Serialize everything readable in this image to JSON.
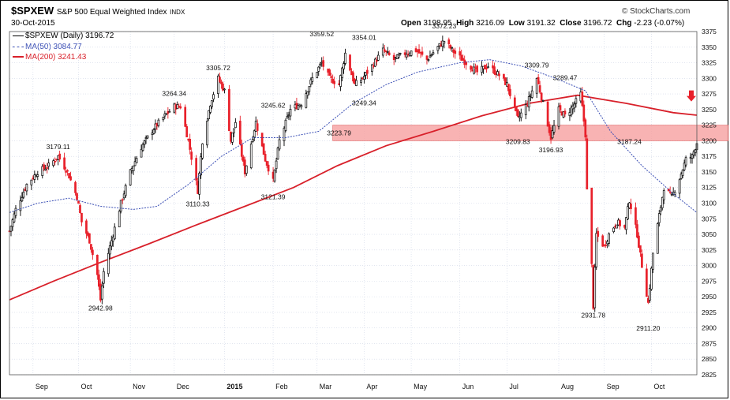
{
  "header": {
    "symbol": "$SPXEW",
    "name": "S&P 500 Equal Weighted Index",
    "exchange": "INDX",
    "date": "30-Oct-2015",
    "open_label": "Open",
    "open": "3198.95",
    "high_label": "High",
    "high": "3216.09",
    "low_label": "Low",
    "low": "3191.32",
    "close_label": "Close",
    "close": "3196.72",
    "chg_label": "Chg",
    "chg": "-2.23 (-0.07%)",
    "brand": "© StockCharts.com"
  },
  "legend": {
    "price": "$SPXEW (Daily) 3196.72",
    "ma50": "MA(50) 3084.77",
    "ma200": "MA(200) 3241.43"
  },
  "colors": {
    "up": "#000000",
    "down": "#e8202a",
    "ma50": "#3b4fb5",
    "ma200": "#d8202a",
    "band": "#f6a0a0",
    "grid": "#cfd6e6"
  },
  "chart_data": {
    "type": "candlestick",
    "yaxis_side": "right",
    "ylim": [
      2825,
      3375
    ],
    "y_ticks": [
      2825,
      2850,
      2875,
      2900,
      2925,
      2950,
      2975,
      3000,
      3025,
      3050,
      3075,
      3100,
      3125,
      3150,
      3175,
      3200,
      3225,
      3250,
      3275,
      3300,
      3325,
      3350,
      3375
    ],
    "x_range": [
      "2014-08-18",
      "2015-10-30"
    ],
    "x_ticks": [
      {
        "label": "Sep",
        "date": "2014-09-02"
      },
      {
        "label": "Oct",
        "date": "2014-10-01"
      },
      {
        "label": "Nov",
        "date": "2014-11-03"
      },
      {
        "label": "Dec",
        "date": "2014-12-01"
      },
      {
        "label": "2015",
        "date": "2015-01-02"
      },
      {
        "label": "Feb",
        "date": "2015-02-02"
      },
      {
        "label": "Mar",
        "date": "2015-03-02"
      },
      {
        "label": "Apr",
        "date": "2015-04-01"
      },
      {
        "label": "May",
        "date": "2015-05-01"
      },
      {
        "label": "Jun",
        "date": "2015-06-01"
      },
      {
        "label": "Jul",
        "date": "2015-07-01"
      },
      {
        "label": "Aug",
        "date": "2015-08-03"
      },
      {
        "label": "Sep",
        "date": "2015-09-01"
      },
      {
        "label": "Oct",
        "date": "2015-10-01"
      }
    ],
    "close_path": [
      [
        "2014-08-18",
        3055
      ],
      [
        "2014-08-22",
        3090
      ],
      [
        "2014-08-29",
        3130
      ],
      [
        "2014-09-05",
        3150
      ],
      [
        "2014-09-12",
        3160
      ],
      [
        "2014-09-18",
        3175
      ],
      [
        "2014-09-24",
        3150
      ],
      [
        "2014-09-30",
        3110
      ],
      [
        "2014-10-03",
        3070
      ],
      [
        "2014-10-08",
        3040
      ],
      [
        "2014-10-13",
        2985
      ],
      [
        "2014-10-15",
        2945
      ],
      [
        "2014-10-17",
        2990
      ],
      [
        "2014-10-22",
        3040
      ],
      [
        "2014-10-28",
        3100
      ],
      [
        "2014-11-03",
        3150
      ],
      [
        "2014-11-10",
        3190
      ],
      [
        "2014-11-18",
        3220
      ],
      [
        "2014-11-25",
        3240
      ],
      [
        "2014-12-01",
        3255
      ],
      [
        "2014-12-05",
        3255
      ],
      [
        "2014-12-10",
        3200
      ],
      [
        "2014-12-16",
        3120
      ],
      [
        "2014-12-19",
        3200
      ],
      [
        "2014-12-24",
        3260
      ],
      [
        "2014-12-29",
        3300
      ],
      [
        "2015-01-02",
        3280
      ],
      [
        "2015-01-06",
        3200
      ],
      [
        "2015-01-09",
        3230
      ],
      [
        "2015-01-15",
        3150
      ],
      [
        "2015-01-22",
        3230
      ],
      [
        "2015-01-28",
        3170
      ],
      [
        "2015-02-02",
        3135
      ],
      [
        "2015-02-06",
        3200
      ],
      [
        "2015-02-13",
        3250
      ],
      [
        "2015-02-20",
        3260
      ],
      [
        "2015-02-27",
        3300
      ],
      [
        "2015-03-05",
        3325
      ],
      [
        "2015-03-10",
        3300
      ],
      [
        "2015-03-16",
        3290
      ],
      [
        "2015-03-20",
        3340
      ],
      [
        "2015-03-26",
        3290
      ],
      [
        "2015-03-31",
        3300
      ],
      [
        "2015-04-06",
        3320
      ],
      [
        "2015-04-13",
        3345
      ],
      [
        "2015-04-20",
        3330
      ],
      [
        "2015-04-27",
        3340
      ],
      [
        "2015-05-04",
        3345
      ],
      [
        "2015-05-11",
        3330
      ],
      [
        "2015-05-18",
        3350
      ],
      [
        "2015-05-22",
        3360
      ],
      [
        "2015-05-29",
        3340
      ],
      [
        "2015-06-05",
        3325
      ],
      [
        "2015-06-12",
        3310
      ],
      [
        "2015-06-19",
        3320
      ],
      [
        "2015-06-26",
        3305
      ],
      [
        "2015-07-01",
        3290
      ],
      [
        "2015-07-08",
        3235
      ],
      [
        "2015-07-14",
        3260
      ],
      [
        "2015-07-20",
        3300
      ],
      [
        "2015-07-24",
        3260
      ],
      [
        "2015-07-29",
        3205
      ],
      [
        "2015-08-03",
        3250
      ],
      [
        "2015-08-07",
        3240
      ],
      [
        "2015-08-12",
        3255
      ],
      [
        "2015-08-17",
        3275
      ],
      [
        "2015-08-20",
        3210
      ],
      [
        "2015-08-21",
        3120
      ],
      [
        "2015-08-24",
        3000
      ],
      [
        "2015-08-25",
        2935
      ],
      [
        "2015-08-27",
        3050
      ],
      [
        "2015-09-01",
        3030
      ],
      [
        "2015-09-04",
        3050
      ],
      [
        "2015-09-09",
        3070
      ],
      [
        "2015-09-14",
        3060
      ],
      [
        "2015-09-17",
        3105
      ],
      [
        "2015-09-22",
        3050
      ],
      [
        "2015-09-25",
        3000
      ],
      [
        "2015-09-29",
        2940
      ],
      [
        "2015-10-02",
        3020
      ],
      [
        "2015-10-06",
        3080
      ],
      [
        "2015-10-09",
        3125
      ],
      [
        "2015-10-14",
        3110
      ],
      [
        "2015-10-19",
        3140
      ],
      [
        "2015-10-23",
        3170
      ],
      [
        "2015-10-27",
        3175
      ],
      [
        "2015-10-30",
        3197
      ]
    ],
    "ma50_path": [
      [
        "2014-08-18",
        3085
      ],
      [
        "2014-09-05",
        3100
      ],
      [
        "2014-09-25",
        3108
      ],
      [
        "2014-10-15",
        3095
      ],
      [
        "2014-11-05",
        3090
      ],
      [
        "2014-11-20",
        3095
      ],
      [
        "2014-12-10",
        3130
      ],
      [
        "2014-12-31",
        3175
      ],
      [
        "2015-01-20",
        3205
      ],
      [
        "2015-02-10",
        3205
      ],
      [
        "2015-03-03",
        3215
      ],
      [
        "2015-03-25",
        3260
      ],
      [
        "2015-04-15",
        3290
      ],
      [
        "2015-05-05",
        3310
      ],
      [
        "2015-06-01",
        3325
      ],
      [
        "2015-06-20",
        3330
      ],
      [
        "2015-07-10",
        3320
      ],
      [
        "2015-08-01",
        3300
      ],
      [
        "2015-08-20",
        3280
      ],
      [
        "2015-09-05",
        3215
      ],
      [
        "2015-09-25",
        3160
      ],
      [
        "2015-10-15",
        3115
      ],
      [
        "2015-10-30",
        3085
      ]
    ],
    "ma200_path": [
      [
        "2014-08-18",
        2945
      ],
      [
        "2014-09-15",
        2975
      ],
      [
        "2014-10-15",
        3005
      ],
      [
        "2014-11-15",
        3035
      ],
      [
        "2014-12-15",
        3065
      ],
      [
        "2015-01-15",
        3095
      ],
      [
        "2015-02-15",
        3125
      ],
      [
        "2015-03-15",
        3160
      ],
      [
        "2015-04-15",
        3192
      ],
      [
        "2015-05-15",
        3215
      ],
      [
        "2015-06-15",
        3240
      ],
      [
        "2015-07-15",
        3260
      ],
      [
        "2015-08-15",
        3273
      ],
      [
        "2015-09-15",
        3260
      ],
      [
        "2015-10-15",
        3245
      ],
      [
        "2015-10-30",
        3241
      ]
    ],
    "resistance_band": [
      3200,
      3225
    ],
    "band_start": "2015-03-12",
    "annotations": [
      {
        "text": "3179.11",
        "date": "2014-09-18",
        "value": 3179.11,
        "pos": "above"
      },
      {
        "text": "2942.98",
        "date": "2014-10-15",
        "value": 2942.98,
        "pos": "below"
      },
      {
        "text": "3264.34",
        "date": "2014-12-01",
        "value": 3264.34,
        "pos": "above"
      },
      {
        "text": "3110.33",
        "date": "2014-12-16",
        "value": 3110.33,
        "pos": "below"
      },
      {
        "text": "3305.72",
        "date": "2014-12-29",
        "value": 3305.72,
        "pos": "above"
      },
      {
        "text": "3121.39",
        "date": "2015-02-02",
        "value": 3121.39,
        "pos": "below"
      },
      {
        "text": "3245.62",
        "date": "2015-02-02",
        "value": 3245.62,
        "pos": "above"
      },
      {
        "text": "3359.52",
        "date": "2015-03-05",
        "value": 3359.52,
        "pos": "above"
      },
      {
        "text": "3223.79",
        "date": "2015-03-16",
        "value": 3223.79,
        "pos": "below"
      },
      {
        "text": "3249.34",
        "date": "2015-04-01",
        "value": 3249.34,
        "pos": "above"
      },
      {
        "text": "3354.01",
        "date": "2015-04-01",
        "value": 3354.01,
        "pos": "above"
      },
      {
        "text": "3372.23",
        "date": "2015-05-22",
        "value": 3372.23,
        "pos": "above"
      },
      {
        "text": "3209.83",
        "date": "2015-07-08",
        "value": 3209.83,
        "pos": "below"
      },
      {
        "text": "3309.79",
        "date": "2015-07-20",
        "value": 3309.79,
        "pos": "above"
      },
      {
        "text": "3196.93",
        "date": "2015-07-29",
        "value": 3196.93,
        "pos": "below"
      },
      {
        "text": "3289.47",
        "date": "2015-08-07",
        "value": 3289.47,
        "pos": "above"
      },
      {
        "text": "2931.78",
        "date": "2015-08-25",
        "value": 2931.78,
        "pos": "below"
      },
      {
        "text": "3187.24",
        "date": "2015-09-17",
        "value": 3187.24,
        "pos": "above"
      },
      {
        "text": "2911.20",
        "date": "2015-09-29",
        "value": 2911.2,
        "pos": "below"
      }
    ]
  }
}
